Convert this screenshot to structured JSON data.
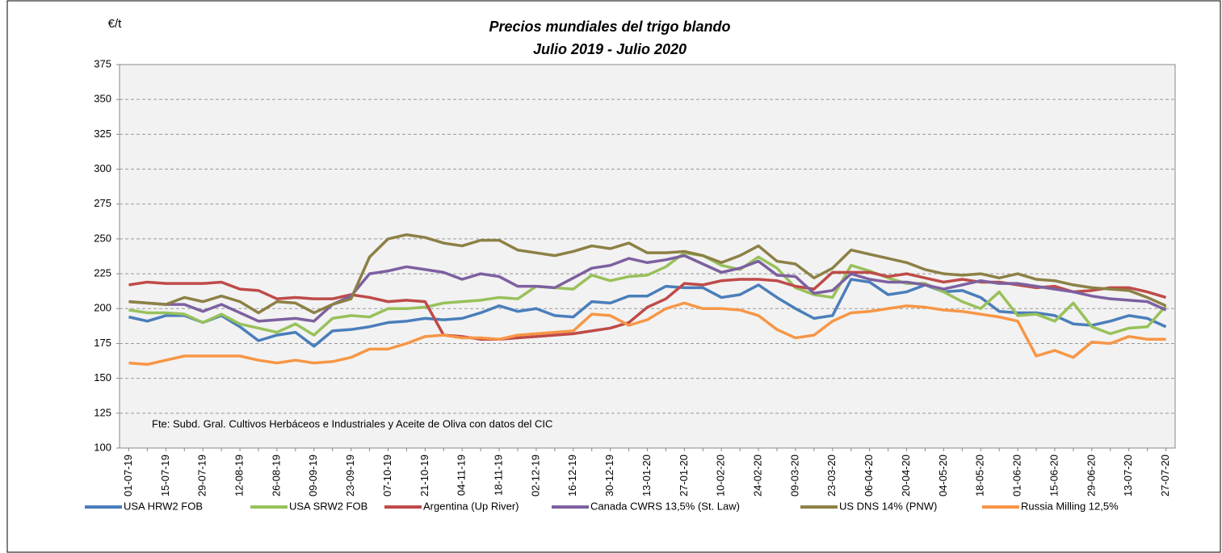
{
  "chart_data": {
    "type": "line",
    "title": "Precios mundiales del trigo blando",
    "subtitle": "Julio 2019 - Julio  2020",
    "y_label": "€/t",
    "annotation": "Fte: Subd. Gral. Cultivos Herbáceos e Industriales y Aceite de Oliva con datos del  CIC",
    "categories": [
      "01-07-19",
      null,
      "15-07-19",
      null,
      "29-07-19",
      null,
      "12-08-19",
      null,
      "26-08-19",
      null,
      "09-09-19",
      null,
      "23-09-19",
      null,
      "07-10-19",
      null,
      "21-10-19",
      null,
      "04-11-19",
      null,
      "18-11-19",
      null,
      "02-12-19",
      null,
      "16-12-19",
      null,
      "30-12-19",
      null,
      "13-01-20",
      null,
      "27-01-20",
      null,
      "10-02-20",
      null,
      "24-02-20",
      null,
      "09-03-20",
      null,
      "23-03-20",
      null,
      "06-04-20",
      null,
      "20-04-20",
      null,
      "04-05-20",
      null,
      "18-05-20",
      null,
      "01-06-20",
      null,
      "15-06-20",
      null,
      "29-06-20",
      null,
      "13-07-20",
      null,
      "27-07-20"
    ],
    "ylim": [
      100,
      375
    ],
    "yticks": [
      100,
      125,
      150,
      175,
      200,
      225,
      250,
      275,
      300,
      325,
      350,
      375
    ],
    "grid": true,
    "legend": "bottom",
    "series": [
      {
        "name": "USA HRW2 FOB",
        "color": "#4a7ebb",
        "values": [
          194,
          191,
          195,
          195,
          190,
          195,
          187,
          177,
          181,
          183,
          173,
          184,
          185,
          187,
          190,
          191,
          193,
          192,
          193,
          197,
          202,
          198,
          200,
          195,
          194,
          205,
          204,
          209,
          209,
          216,
          215,
          215,
          208,
          210,
          217,
          208,
          200,
          193,
          195,
          221,
          219,
          210,
          212,
          217,
          212,
          213,
          208,
          198,
          197,
          197,
          195,
          189,
          188,
          191,
          195,
          193,
          187
        ]
      },
      {
        "name": "USA SRW2 FOB",
        "color": "#98c15a",
        "values": [
          199,
          197,
          197,
          196,
          190,
          196,
          189,
          186,
          183,
          189,
          181,
          193,
          195,
          194,
          200,
          200,
          201,
          204,
          205,
          206,
          208,
          207,
          216,
          215,
          214,
          224,
          220,
          223,
          224,
          230,
          240,
          238,
          231,
          228,
          237,
          229,
          215,
          210,
          208,
          231,
          227,
          222,
          218,
          218,
          212,
          205,
          200,
          212,
          195,
          196,
          191,
          204,
          187,
          182,
          186,
          187,
          202
        ]
      },
      {
        "name": "Argentina (Up River)",
        "color": "#be4b48",
        "values": [
          217,
          219,
          218,
          218,
          218,
          219,
          214,
          213,
          207,
          208,
          207,
          207,
          210,
          208,
          205,
          206,
          205,
          181,
          180,
          178,
          178,
          179,
          180,
          181,
          182,
          184,
          186,
          190,
          201,
          207,
          218,
          217,
          220,
          221,
          221,
          220,
          216,
          214,
          226,
          226,
          226,
          223,
          225,
          222,
          219,
          221,
          219,
          219,
          217,
          215,
          216,
          212,
          213,
          215,
          215,
          212,
          208
        ]
      },
      {
        "name": "Canada CWRS 13,5% (St. Law)",
        "color": "#7d60a0",
        "values": [
          205,
          204,
          203,
          203,
          198,
          203,
          197,
          191,
          192,
          193,
          191,
          203,
          209,
          225,
          227,
          230,
          228,
          226,
          221,
          225,
          223,
          216,
          216,
          215,
          222,
          229,
          231,
          236,
          233,
          235,
          238,
          232,
          226,
          229,
          234,
          224,
          223,
          211,
          213,
          225,
          221,
          219,
          219,
          217,
          214,
          217,
          220,
          218,
          218,
          216,
          214,
          212,
          209,
          207,
          206,
          205,
          199
        ]
      },
      {
        "name": "US DNS 14% (PNW)",
        "color": "#8c8045",
        "values": [
          205,
          204,
          203,
          208,
          205,
          209,
          205,
          197,
          205,
          204,
          197,
          203,
          207,
          237,
          250,
          253,
          251,
          247,
          245,
          249,
          249,
          242,
          240,
          238,
          241,
          245,
          243,
          247,
          240,
          240,
          241,
          238,
          233,
          238,
          245,
          234,
          232,
          222,
          229,
          242,
          239,
          236,
          233,
          228,
          225,
          224,
          225,
          222,
          225,
          221,
          220,
          217,
          215,
          214,
          213,
          208,
          202
        ]
      },
      {
        "name": "Russia Milling 12,5%",
        "color": "#f79646",
        "values": [
          161,
          160,
          163,
          166,
          166,
          166,
          166,
          163,
          161,
          163,
          161,
          162,
          165,
          171,
          171,
          175,
          180,
          181,
          179,
          179,
          178,
          181,
          182,
          183,
          184,
          196,
          195,
          188,
          192,
          200,
          204,
          200,
          200,
          199,
          195,
          185,
          179,
          181,
          191,
          197,
          198,
          200,
          202,
          201,
          199,
          198,
          196,
          194,
          191,
          166,
          170,
          165,
          176,
          175,
          180,
          178,
          178
        ]
      }
    ]
  }
}
